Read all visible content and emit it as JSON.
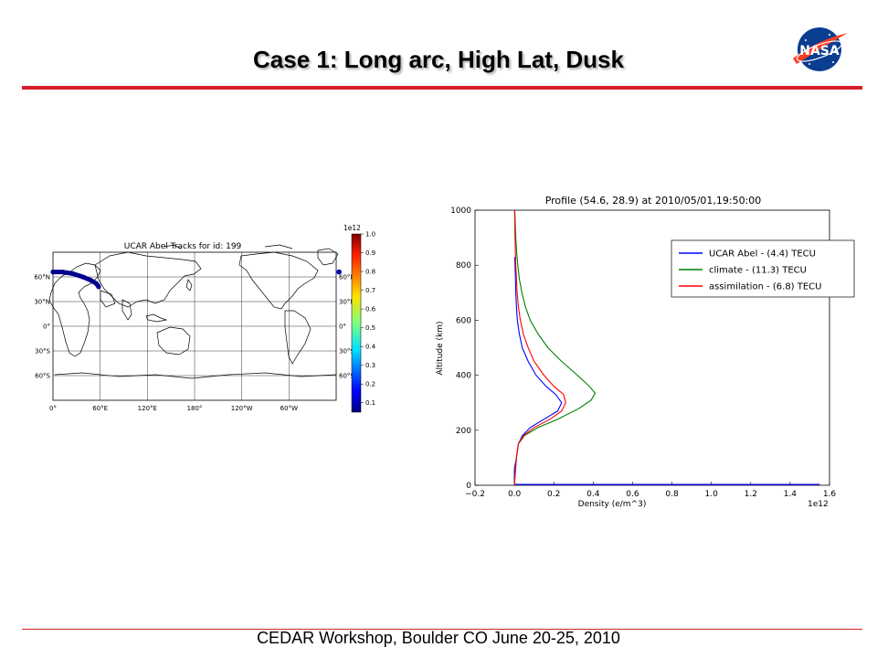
{
  "slide": {
    "title": "Case 1: Long arc, High Lat, Dusk",
    "footer": "CEDAR Workshop, Boulder CO June 20-25, 2010",
    "logo_text": "NASA",
    "accent_color": "#d81e28"
  },
  "chart_data": [
    {
      "type": "map",
      "title": "UCAR Abel Tracks for id: 199",
      "x_ticks": [
        "0°",
        "60°E",
        "120°E",
        "180°",
        "120°W",
        "60°W"
      ],
      "y_ticks_left": [
        "60°N",
        "30°N",
        "0°",
        "30°S",
        "60°S"
      ],
      "y_ticks_right": [
        "60°N",
        "30°N",
        "0°",
        "30°S",
        "60°S"
      ],
      "colorbar": {
        "exponent": "1e12",
        "ticks": [
          "1.0",
          "0.9",
          "0.8",
          "0.7",
          "0.6",
          "0.5",
          "0.4",
          "0.3",
          "0.2",
          "0.1"
        ],
        "range": [
          0.05,
          1.0
        ],
        "colormap": "jet"
      },
      "track": {
        "value": 0.05,
        "points": [
          {
            "lon": 0,
            "lat": 66
          },
          {
            "lon": 12,
            "lat": 66
          },
          {
            "lon": 25,
            "lat": 64
          },
          {
            "lon": 38,
            "lat": 60
          },
          {
            "lon": 48,
            "lat": 56
          },
          {
            "lon": 55,
            "lat": 52
          },
          {
            "lon": 58,
            "lat": 48
          }
        ],
        "wrap_point": {
          "lon": 359,
          "lat": 66
        }
      }
    },
    {
      "type": "line",
      "title": "Profile (54.6, 28.9) at 2010/05/01,19:50:00",
      "xlabel": "Density (e/m^3)",
      "ylabel": "Altitude (km)",
      "x_exponent": "1e12",
      "xlim": [
        -0.2,
        1.6
      ],
      "ylim": [
        0,
        1000
      ],
      "x_ticks": [
        "−0.2",
        "0.0",
        "0.2",
        "0.4",
        "0.6",
        "0.8",
        "1.0",
        "1.2",
        "1.4",
        "1.6"
      ],
      "y_ticks": [
        "0",
        "200",
        "400",
        "600",
        "800",
        "1000"
      ],
      "legend_position": "top-right",
      "series": [
        {
          "name": "UCAR Abel - (4.4) TECU",
          "color": "#0000ff",
          "points": [
            [
              0.0,
              0
            ],
            [
              0.0,
              60
            ],
            [
              0.01,
              100
            ],
            [
              0.02,
              150
            ],
            [
              0.04,
              180
            ],
            [
              0.08,
              210
            ],
            [
              0.15,
              240
            ],
            [
              0.22,
              270
            ],
            [
              0.24,
              300
            ],
            [
              0.21,
              330
            ],
            [
              0.16,
              360
            ],
            [
              0.11,
              400
            ],
            [
              0.07,
              450
            ],
            [
              0.04,
              500
            ],
            [
              0.025,
              550
            ],
            [
              0.015,
              600
            ],
            [
              0.01,
              650
            ],
            [
              0.007,
              700
            ],
            [
              0.005,
              760
            ],
            [
              0.003,
              800
            ],
            [
              0.002,
              830
            ]
          ]
        },
        {
          "name": "climate - (11.3) TECU",
          "color": "#008000",
          "points": [
            [
              0.0,
              0
            ],
            [
              0.005,
              50
            ],
            [
              0.01,
              100
            ],
            [
              0.02,
              150
            ],
            [
              0.05,
              180
            ],
            [
              0.12,
              210
            ],
            [
              0.22,
              240
            ],
            [
              0.33,
              280
            ],
            [
              0.39,
              310
            ],
            [
              0.41,
              335
            ],
            [
              0.38,
              360
            ],
            [
              0.32,
              400
            ],
            [
              0.24,
              450
            ],
            [
              0.17,
              500
            ],
            [
              0.12,
              550
            ],
            [
              0.08,
              600
            ],
            [
              0.055,
              650
            ],
            [
              0.038,
              700
            ],
            [
              0.025,
              750
            ],
            [
              0.017,
              800
            ],
            [
              0.011,
              850
            ],
            [
              0.007,
              900
            ],
            [
              0.004,
              950
            ],
            [
              0.002,
              1000
            ]
          ]
        },
        {
          "name": "assimilation - (6.8) TECU",
          "color": "#ff0000",
          "points": [
            [
              0.0,
              0
            ],
            [
              0.005,
              50
            ],
            [
              0.01,
              100
            ],
            [
              0.02,
              150
            ],
            [
              0.045,
              180
            ],
            [
              0.1,
              210
            ],
            [
              0.18,
              240
            ],
            [
              0.24,
              270
            ],
            [
              0.26,
              300
            ],
            [
              0.25,
              330
            ],
            [
              0.2,
              360
            ],
            [
              0.15,
              400
            ],
            [
              0.1,
              450
            ],
            [
              0.07,
              500
            ],
            [
              0.045,
              550
            ],
            [
              0.03,
              600
            ],
            [
              0.02,
              650
            ],
            [
              0.014,
              700
            ],
            [
              0.01,
              750
            ],
            [
              0.007,
              800
            ],
            [
              0.005,
              850
            ],
            [
              0.003,
              900
            ],
            [
              0.002,
              950
            ],
            [
              0.001,
              1000
            ]
          ]
        }
      ],
      "baseline": {
        "color": "#0000ff",
        "points": [
          [
            0.0,
            3
          ],
          [
            1.55,
            3
          ]
        ]
      }
    }
  ]
}
